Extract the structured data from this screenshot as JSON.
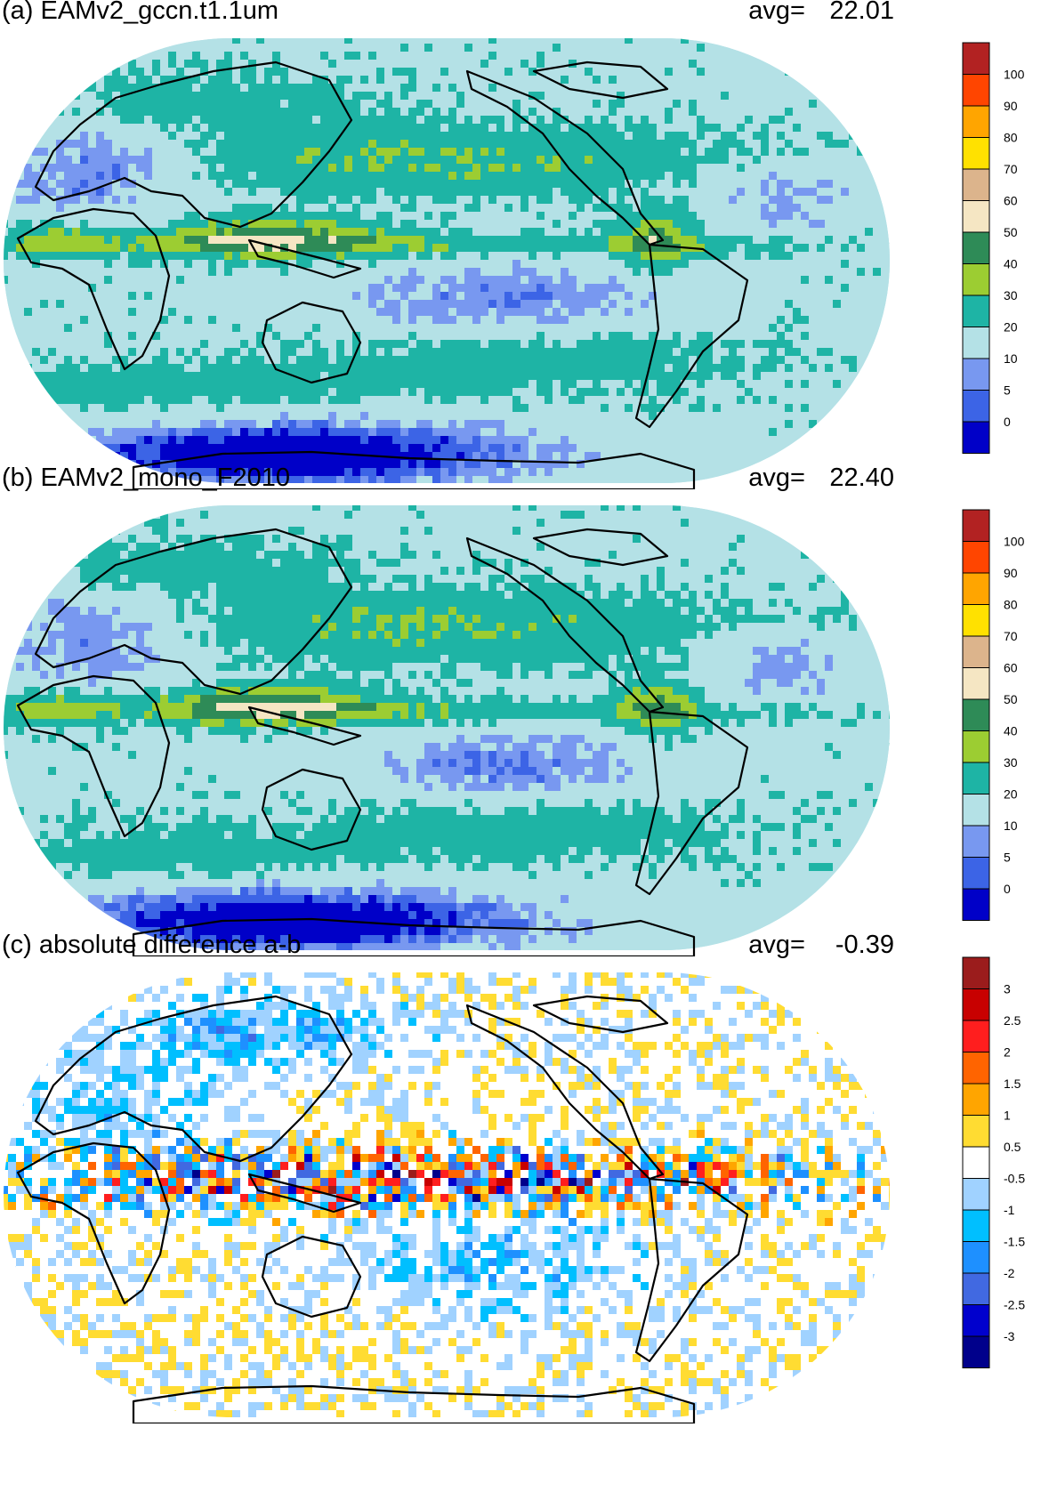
{
  "panels": [
    {
      "id": "a",
      "title": "(a) EAMv2_gccn.t1.1um",
      "avg_label": "avg=",
      "avg_value": "22.01",
      "colorbar": {
        "colors": [
          "#0000c8",
          "#3c64e6",
          "#7898f0",
          "#b4e1e6",
          "#1eb4a5",
          "#9ccd32",
          "#2e8b57",
          "#f5e6c3",
          "#dcb48c",
          "#ffe100",
          "#ffa500",
          "#ff4500",
          "#b22222"
        ],
        "labels": [
          "0",
          "5",
          "10",
          "20",
          "30",
          "40",
          "50",
          "60",
          "70",
          "80",
          "90",
          "100"
        ]
      }
    },
    {
      "id": "b",
      "title": "(b) EAMv2_mono_F2010",
      "avg_label": "avg=",
      "avg_value": "22.40",
      "colorbar": {
        "colors": [
          "#0000c8",
          "#3c64e6",
          "#7898f0",
          "#b4e1e6",
          "#1eb4a5",
          "#9ccd32",
          "#2e8b57",
          "#f5e6c3",
          "#dcb48c",
          "#ffe100",
          "#ffa500",
          "#ff4500",
          "#b22222"
        ],
        "labels": [
          "0",
          "5",
          "10",
          "20",
          "30",
          "40",
          "50",
          "60",
          "70",
          "80",
          "90",
          "100"
        ]
      }
    },
    {
      "id": "c",
      "title": "(c) absolute difference a-b",
      "avg_label": "avg=",
      "avg_value": "-0.39",
      "colorbar": {
        "colors": [
          "#00008b",
          "#0000cd",
          "#4169e1",
          "#1e90ff",
          "#00bfff",
          "#a0d2ff",
          "#ffffff",
          "#ffdc32",
          "#ffa500",
          "#ff6400",
          "#ff1e1e",
          "#c80000",
          "#9b1c1c"
        ],
        "labels": [
          "-3",
          "-2.5",
          "-2",
          "-1.5",
          "-1",
          "-0.5",
          "0.5",
          "1",
          "1.5",
          "2",
          "2.5",
          "3"
        ]
      }
    }
  ]
}
